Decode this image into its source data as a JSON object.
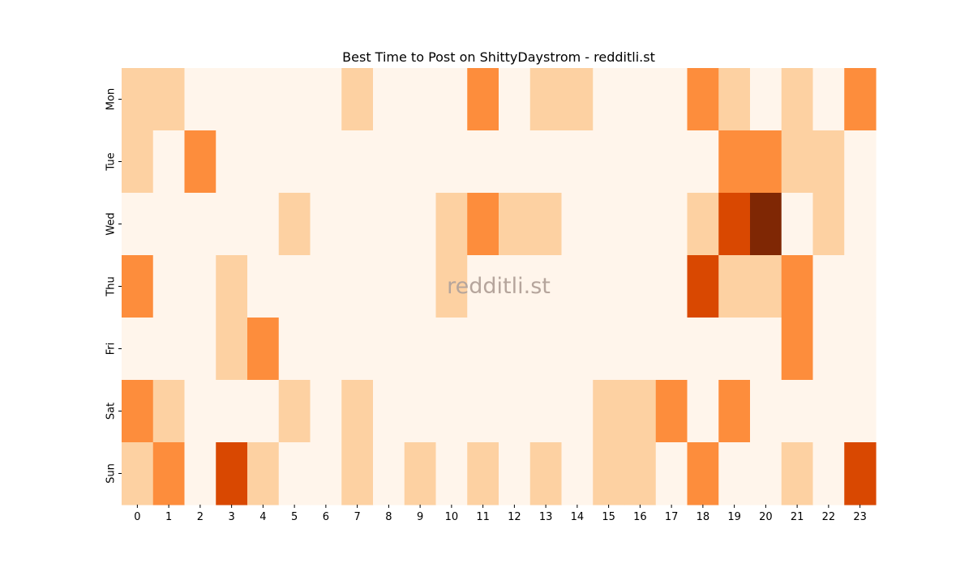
{
  "chart_data": {
    "type": "heatmap",
    "title": "Best Time to Post on ShittyDaystrom - redditli.st",
    "watermark": "redditli.st",
    "xlabel": "",
    "ylabel": "",
    "x": [
      "0",
      "1",
      "2",
      "3",
      "4",
      "5",
      "6",
      "7",
      "8",
      "9",
      "10",
      "11",
      "12",
      "13",
      "14",
      "15",
      "16",
      "17",
      "18",
      "19",
      "20",
      "21",
      "22",
      "23"
    ],
    "y": [
      "Mon",
      "Tue",
      "Wed",
      "Thu",
      "Fri",
      "Sat",
      "Sun"
    ],
    "values": [
      [
        1,
        1,
        0,
        0,
        0,
        0,
        0,
        1,
        0,
        0,
        0,
        2,
        0,
        1,
        1,
        0,
        0,
        0,
        2,
        1,
        0,
        1,
        0,
        2
      ],
      [
        1,
        0,
        2,
        0,
        0,
        0,
        0,
        0,
        0,
        0,
        0,
        0,
        0,
        0,
        0,
        0,
        0,
        0,
        0,
        2,
        2,
        1,
        1,
        0
      ],
      [
        0,
        0,
        0,
        0,
        0,
        1,
        0,
        0,
        0,
        0,
        1,
        2,
        1,
        1,
        0,
        0,
        0,
        0,
        1,
        3,
        4,
        0,
        1,
        0
      ],
      [
        2,
        0,
        0,
        1,
        0,
        0,
        0,
        0,
        0,
        0,
        1,
        0,
        0,
        0,
        0,
        0,
        0,
        0,
        3,
        1,
        1,
        2,
        0,
        0
      ],
      [
        0,
        0,
        0,
        1,
        2,
        0,
        0,
        0,
        0,
        0,
        0,
        0,
        0,
        0,
        0,
        0,
        0,
        0,
        0,
        0,
        0,
        2,
        0,
        0
      ],
      [
        2,
        1,
        0,
        0,
        0,
        1,
        0,
        1,
        0,
        0,
        0,
        0,
        0,
        0,
        0,
        1,
        1,
        2,
        0,
        2,
        0,
        0,
        0,
        0
      ],
      [
        1,
        2,
        0,
        3,
        1,
        0,
        0,
        1,
        0,
        1,
        0,
        1,
        0,
        1,
        0,
        1,
        1,
        0,
        2,
        0,
        0,
        1,
        0,
        3
      ]
    ],
    "colormap": [
      "#fff5eb",
      "#fdd1a2",
      "#fd8d3c",
      "#d94801",
      "#7f2704"
    ],
    "grid": false,
    "legend": "none"
  }
}
